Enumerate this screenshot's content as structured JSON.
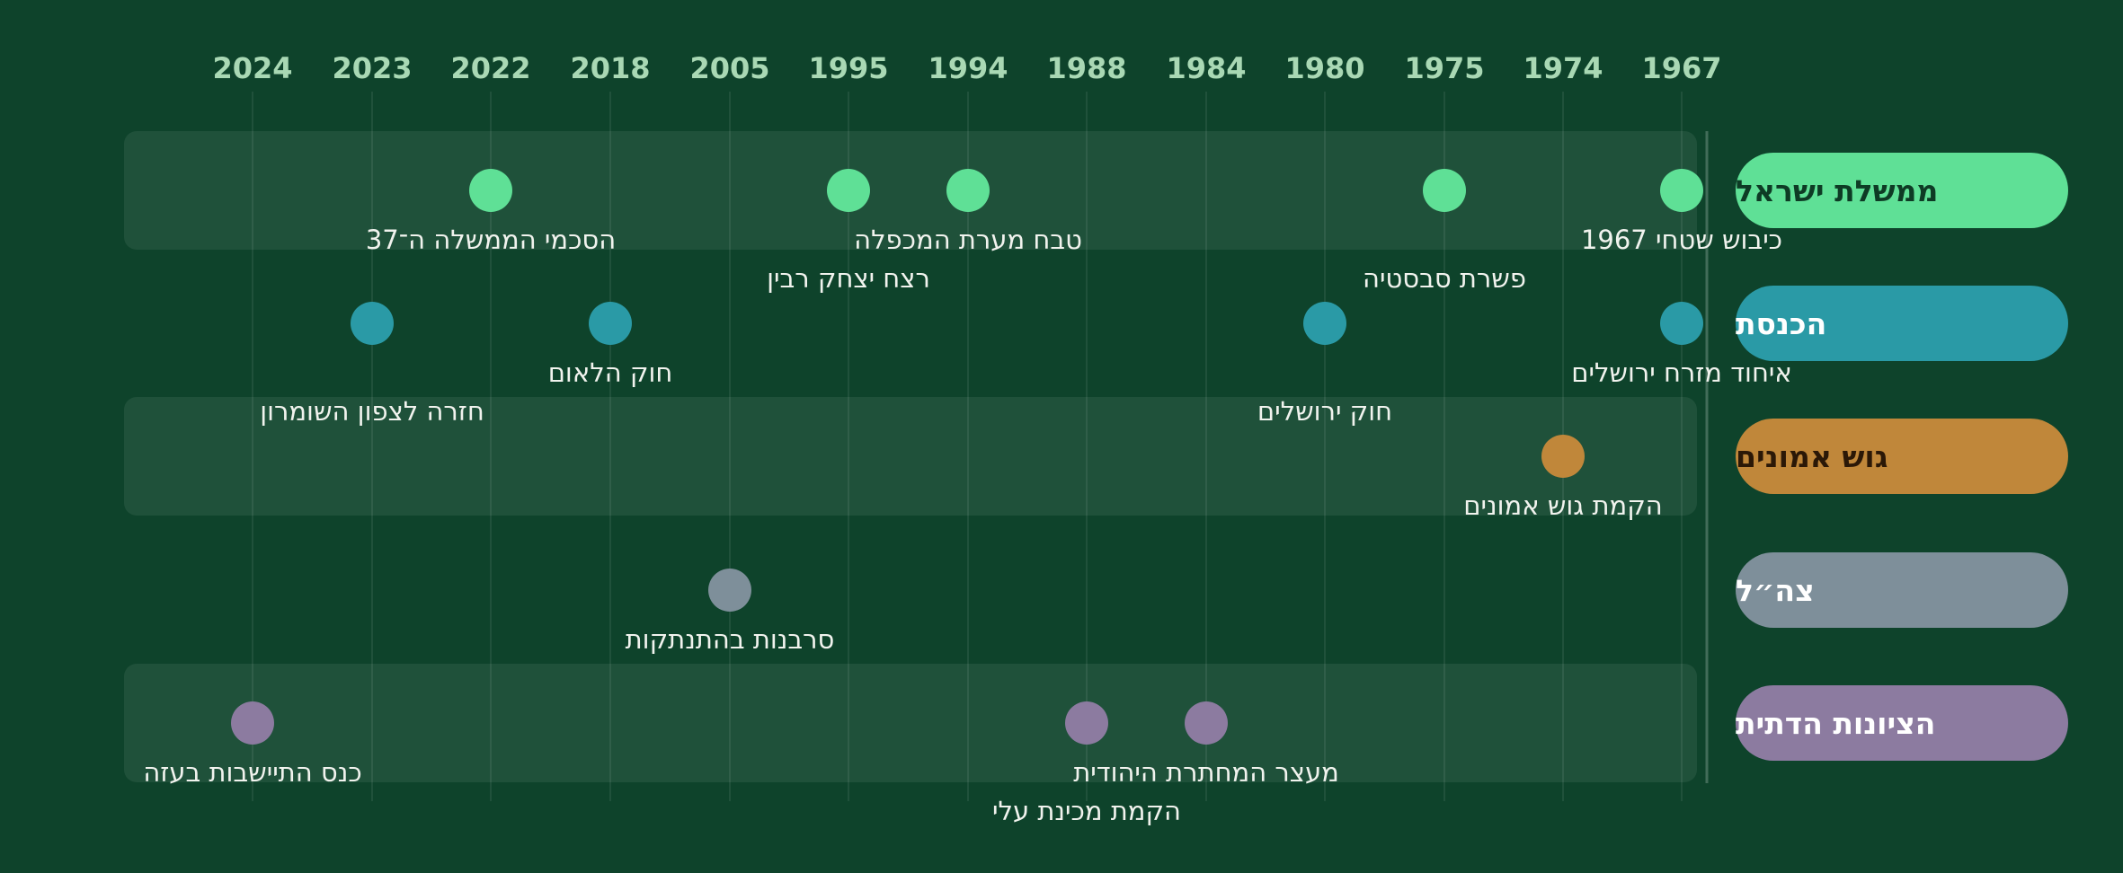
{
  "years": [
    "1967",
    "1974",
    "1975",
    "1980",
    "1984",
    "1988",
    "1994",
    "1995",
    "2005",
    "2018",
    "2022",
    "2023",
    "2024"
  ],
  "lanes": [
    {
      "id": "gov",
      "label": "ממשלת ישראל",
      "color": "#5fe096",
      "text_color": "#0e3b25"
    },
    {
      "id": "knesset",
      "label": "הכנסת",
      "color": "#2a9aa6",
      "text_color": "#ffffff"
    },
    {
      "id": "gush",
      "label": "גוש אמונים",
      "color": "#c0873a",
      "text_color": "#2b1807"
    },
    {
      "id": "idf",
      "label": "צה״ל",
      "color": "#7e8f9a",
      "text_color": "#ffffff"
    },
    {
      "id": "rz",
      "label": "הציונות הדתית",
      "color": "#8c7ba0",
      "text_color": "#ffffff"
    }
  ],
  "events": [
    {
      "lane": "gov",
      "year": "1967",
      "label": "כיבוש שטחי 1967"
    },
    {
      "lane": "gov",
      "year": "1975",
      "label": "פשרת סבסטיה"
    },
    {
      "lane": "gov",
      "year": "1994",
      "label": "טבח מערת המכפלה"
    },
    {
      "lane": "gov",
      "year": "1995",
      "label": "רצח יצחק רבין"
    },
    {
      "lane": "gov",
      "year": "2022",
      "label": "הסכמי הממשלה ה־37"
    },
    {
      "lane": "knesset",
      "year": "1967",
      "label": "איחוד מזרח ירושלים"
    },
    {
      "lane": "knesset",
      "year": "1980",
      "label": "חוק ירושלים"
    },
    {
      "lane": "knesset",
      "year": "2018",
      "label": "חוק הלאום"
    },
    {
      "lane": "knesset",
      "year": "2023",
      "label": "חזרה לצפון השומרון"
    },
    {
      "lane": "gush",
      "year": "1974",
      "label": "הקמת גוש אמונים"
    },
    {
      "lane": "idf",
      "year": "2005",
      "label": "סרבנות בהתנתקות"
    },
    {
      "lane": "rz",
      "year": "1984",
      "label": "מעצר המחתרת היהודית"
    },
    {
      "lane": "rz",
      "year": "1988",
      "label": "הקמת מכינת עלי"
    },
    {
      "lane": "rz",
      "year": "2024",
      "label": "כנס התיישבות בעזה"
    }
  ]
}
